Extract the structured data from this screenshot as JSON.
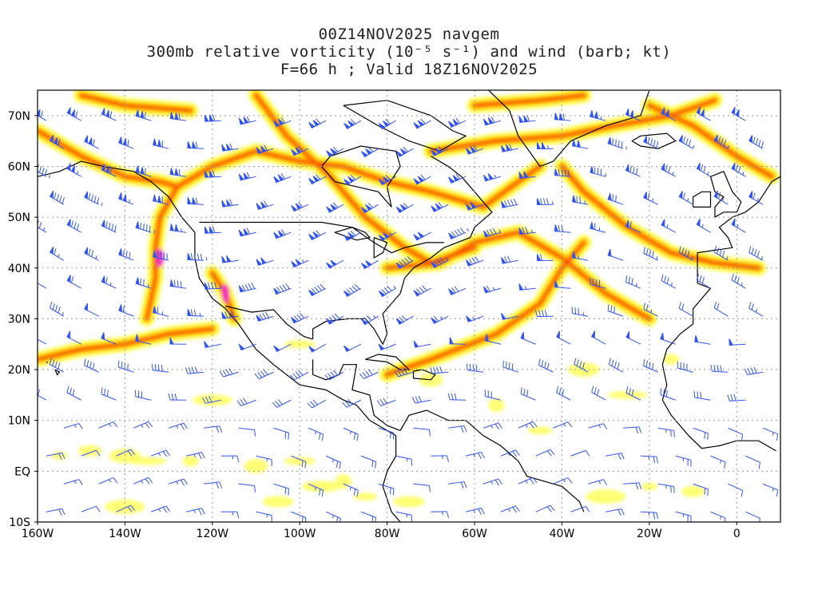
{
  "title": {
    "line1": "00Z14NOV2025 navgem",
    "line2": "300mb relative vorticity (10⁻⁵ s⁻¹) and wind (barb; kt)",
    "line3": "F=66 h ; Valid 18Z16NOV2025"
  },
  "map": {
    "lon_range": [
      -160,
      10
    ],
    "lat_range": [
      -10,
      75
    ],
    "grid": "dotted",
    "x_ticks": [
      "160W",
      "140W",
      "120W",
      "100W",
      "80W",
      "60W",
      "40W",
      "20W",
      "0"
    ],
    "y_ticks": [
      "10S",
      "EQ",
      "10N",
      "20N",
      "30N",
      "40N",
      "50N",
      "60N",
      "70N"
    ],
    "colors": {
      "light_yellow": "#ffff66",
      "yellow": "#ffee00",
      "orange": "#ffaa00",
      "dark_orange": "#ff7700",
      "red": "#ee3300",
      "magenta": "#ee22dd",
      "barb": "#3355ee",
      "coast": "#000000",
      "grid": "#999999"
    }
  }
}
